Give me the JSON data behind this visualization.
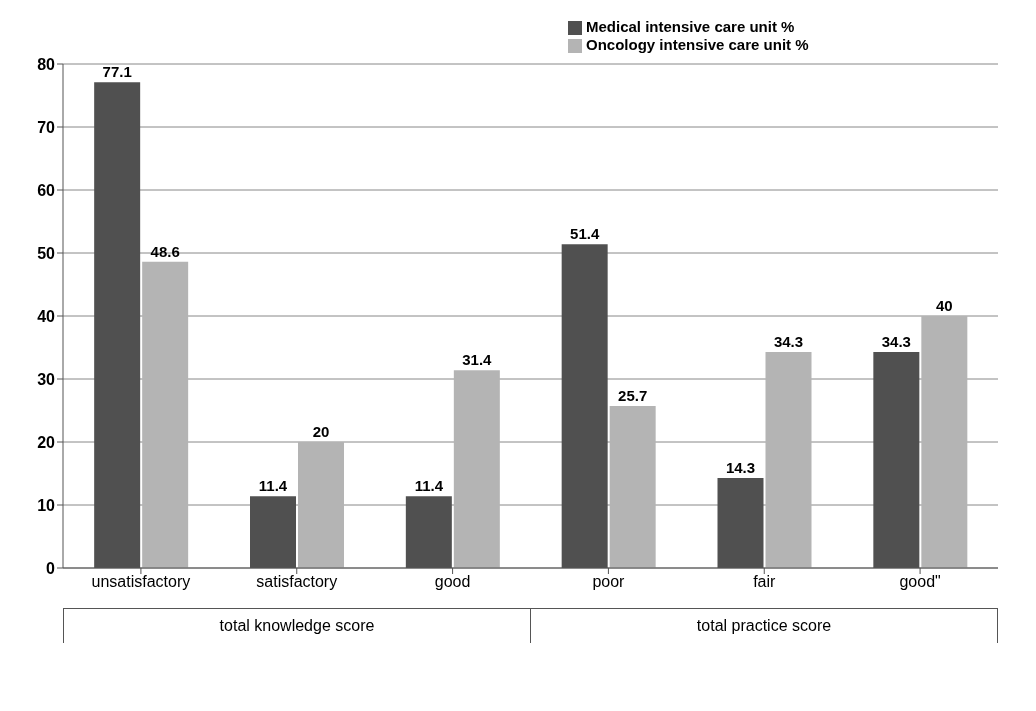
{
  "chart_data": {
    "type": "bar",
    "categories": [
      "unsatisfactory",
      "satisfactory",
      "good",
      "poor",
      "fair",
      "good\""
    ],
    "series": [
      {
        "name": "Medical intensive  care unit %",
        "color": "#505050",
        "values": [
          77.1,
          11.4,
          11.4,
          51.4,
          14.3,
          34.3
        ]
      },
      {
        "name": "Oncology intensive care unit %",
        "color": "#b4b4b4",
        "values": [
          48.6,
          20,
          31.4,
          25.7,
          34.3,
          40
        ]
      }
    ],
    "ylim": [
      0,
      80
    ],
    "yticks": [
      0,
      10,
      20,
      30,
      40,
      50,
      60,
      70,
      80
    ],
    "grid": "y",
    "legend": "top right",
    "data_labels": true,
    "annotations": [
      "total knowledge score",
      "total practice score"
    ]
  }
}
